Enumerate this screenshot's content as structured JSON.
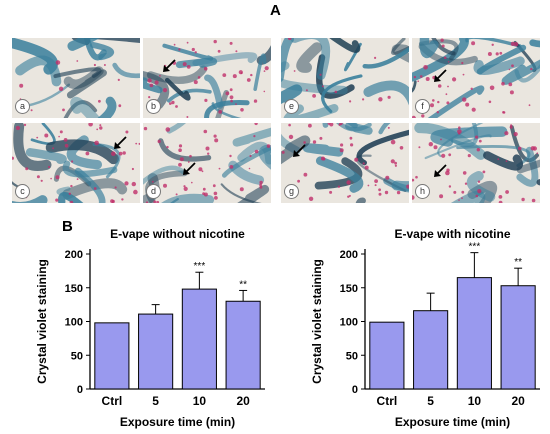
{
  "figure": {
    "panel_a_label": "A",
    "panel_b_label": "B",
    "micrographs": [
      {
        "label": "a",
        "arrow": false
      },
      {
        "label": "b",
        "arrow": true
      },
      {
        "label": "c",
        "arrow": true
      },
      {
        "label": "d",
        "arrow": true
      },
      {
        "label": "e",
        "arrow": false
      },
      {
        "label": "f",
        "arrow": true
      },
      {
        "label": "g",
        "arrow": true
      },
      {
        "label": "h",
        "arrow": true
      }
    ],
    "colors": {
      "bar_fill": "#9999ee",
      "bar_stroke": "#000000",
      "stain_blue": "#3a7f9c",
      "stain_pink": "#c0306a"
    }
  },
  "chart_data": [
    {
      "type": "bar",
      "title": "E-vape without nicotine",
      "xlabel": "Exposure time (min)",
      "ylabel": "Crystal violet staining",
      "categories": [
        "Ctrl",
        "5",
        "10",
        "20"
      ],
      "values": [
        98,
        111,
        148,
        130
      ],
      "errors": [
        0,
        14,
        25,
        16
      ],
      "annotations": [
        "",
        "",
        "***",
        "**"
      ],
      "ylim": [
        0,
        200
      ],
      "yticks": [
        "0",
        "50",
        "100",
        "150",
        "200"
      ]
    },
    {
      "type": "bar",
      "title": "E-vape with nicotine",
      "xlabel": "Exposure time (min)",
      "ylabel": "Crystal violet staining",
      "categories": [
        "Ctrl",
        "5",
        "10",
        "20"
      ],
      "values": [
        99,
        116,
        165,
        153
      ],
      "errors": [
        0,
        26,
        37,
        26
      ],
      "annotations": [
        "",
        "",
        "***",
        "**"
      ],
      "ylim": [
        0,
        200
      ],
      "yticks": [
        "0",
        "50",
        "100",
        "150",
        "200"
      ]
    }
  ]
}
